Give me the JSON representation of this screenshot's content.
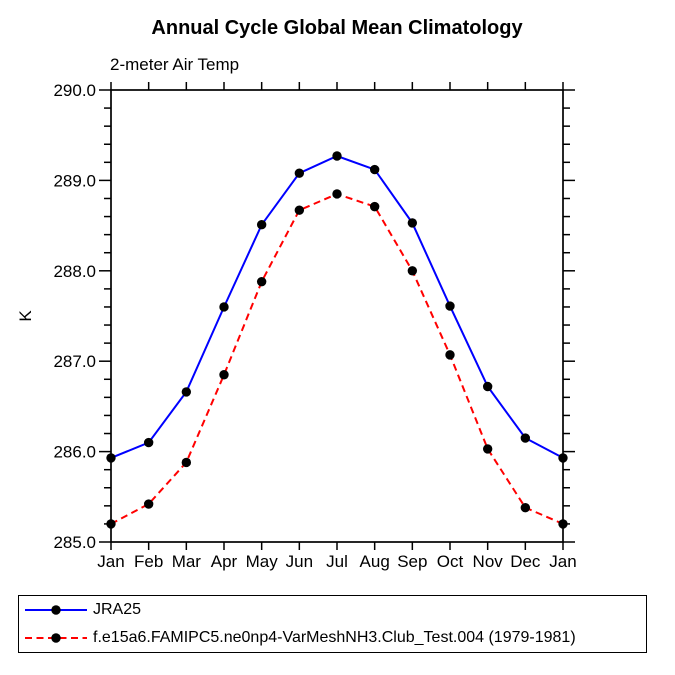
{
  "chart_data": {
    "type": "line",
    "title": "Annual Cycle Global Mean Climatology",
    "subtitle": "2-meter Air Temp",
    "ylabel": "K",
    "xlabel": "",
    "grid": false,
    "legend_position": "bottom-left-box",
    "ylim": [
      285.0,
      290.0
    ],
    "ytick_interval": 1.0,
    "yminor_interval": 0.2,
    "ytick_labels": [
      "285.0",
      "286.0",
      "287.0",
      "288.0",
      "289.0",
      "290.0"
    ],
    "categories": [
      "Jan",
      "Feb",
      "Mar",
      "Apr",
      "May",
      "Jun",
      "Jul",
      "Aug",
      "Sep",
      "Oct",
      "Nov",
      "Dec",
      "Jan"
    ],
    "marker": "filled-circle",
    "marker_color": "#000000",
    "series": [
      {
        "name": "JRA25",
        "color": "#0000ff",
        "line_style": "solid",
        "values": [
          285.93,
          286.1,
          286.66,
          287.6,
          288.51,
          289.08,
          289.27,
          289.12,
          288.53,
          287.61,
          286.72,
          286.15,
          285.93
        ]
      },
      {
        "name": "f.e15a6.FAMIPC5.ne0np4-VarMeshNH3.Club_Test.004 (1979-1981)",
        "color": "#ff0000",
        "line_style": "dashed",
        "values": [
          285.2,
          285.42,
          285.88,
          286.85,
          287.88,
          288.67,
          288.85,
          288.71,
          288.0,
          287.07,
          286.03,
          285.38,
          285.2
        ]
      }
    ]
  }
}
